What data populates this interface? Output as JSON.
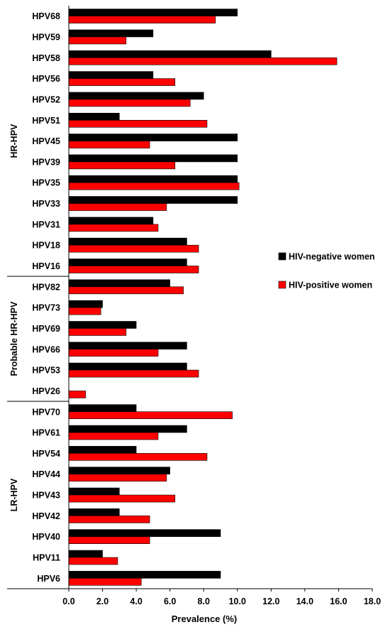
{
  "chart_data": {
    "type": "bar",
    "orientation": "horizontal",
    "title": "",
    "xlabel": "Prevalence (%)",
    "ylabel": "",
    "xlim": [
      0,
      18
    ],
    "x_ticks": [
      "0.0",
      "2.0",
      "4.0",
      "6.0",
      "8.0",
      "10.0",
      "12.0",
      "14.0",
      "16.0",
      "18.0"
    ],
    "grid": false,
    "legend_position": "right",
    "categories": [
      "HPV68",
      "HPV59",
      "HPV58",
      "HPV56",
      "HPV52",
      "HPV51",
      "HPV45",
      "HPV39",
      "HPV35",
      "HPV33",
      "HPV31",
      "HPV18",
      "HPV16",
      "HPV82",
      "HPV73",
      "HPV69",
      "HPV66",
      "HPV53",
      "HPV26",
      "HPV70",
      "HPV61",
      "HPV54",
      "HPV44",
      "HPV43",
      "HPV42",
      "HPV40",
      "HPV11",
      "HPV6"
    ],
    "groups": [
      {
        "label": "HR-HPV",
        "count": 13
      },
      {
        "label": "Probable HR-HPV",
        "count": 6
      },
      {
        "label": "LR-HPV",
        "count": 9
      }
    ],
    "series": [
      {
        "name": "HIV-negative women",
        "color": "#000000",
        "values": [
          10.0,
          5.0,
          12.0,
          5.0,
          8.0,
          3.0,
          10.0,
          10.0,
          10.0,
          10.0,
          5.0,
          7.0,
          7.0,
          6.0,
          2.0,
          4.0,
          7.0,
          7.0,
          0.0,
          4.0,
          7.0,
          4.0,
          6.0,
          3.0,
          3.0,
          9.0,
          2.0,
          9.0
        ]
      },
      {
        "name": "HIV-positive women",
        "color": "#ff0000",
        "values": [
          8.7,
          3.4,
          15.9,
          6.3,
          7.2,
          8.2,
          4.8,
          6.3,
          10.1,
          5.8,
          5.3,
          7.7,
          7.7,
          6.8,
          1.9,
          3.4,
          5.3,
          7.7,
          1.0,
          9.7,
          5.3,
          8.2,
          5.8,
          6.3,
          4.8,
          4.8,
          2.9,
          4.3
        ]
      }
    ]
  }
}
